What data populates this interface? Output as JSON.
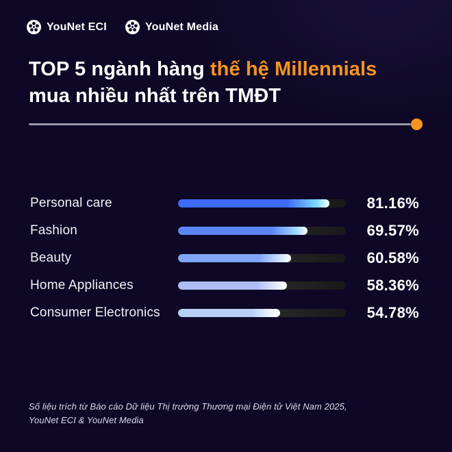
{
  "brand": {
    "logo1": "YouNet ECI",
    "logo2": "YouNet Media"
  },
  "title": {
    "line1_white": "TOP 5 ngành hàng ",
    "line1_orange": "thế hệ Millennials",
    "line2": "mua nhiều nhất trên TMĐT"
  },
  "chart_data": {
    "type": "bar",
    "orientation": "horizontal",
    "title": "TOP 5 ngành hàng thế hệ Millennials mua nhiều nhất trên TMĐT",
    "categories": [
      "Personal care",
      "Fashion",
      "Beauty",
      "Home Appliances",
      "Consumer Electronics"
    ],
    "values": [
      81.16,
      69.57,
      60.58,
      58.36,
      54.78
    ],
    "value_labels": [
      "81.16%",
      "69.57%",
      "60.58%",
      "58.36%",
      "54.78%"
    ],
    "xlim": [
      0,
      100
    ],
    "grid": false,
    "legend": false,
    "bar_colors": [
      {
        "base": "#3d6bf4",
        "tip": "#7fdcff"
      },
      {
        "base": "#5b86f6",
        "tip": "#a8dcff"
      },
      {
        "base": "#7fa6f6",
        "tip": "#d6e9ff"
      },
      {
        "base": "#aebcf4",
        "tip": "#e9efff"
      },
      {
        "base": "#b9d0f6",
        "tip": "#f2f8ff"
      }
    ],
    "track_color": "#1f1f1f"
  },
  "footer": {
    "line1": "Số liệu trích từ Báo cáo Dữ liệu Thị trường Thương mại Điện tử Việt Nam 2025,",
    "line2": "YouNet ECI & YouNet Media"
  },
  "colors": {
    "background": "#0e0826",
    "accent_orange": "#f7941e",
    "divider_gray": "#9b98a6",
    "text_white": "#ffffff"
  }
}
